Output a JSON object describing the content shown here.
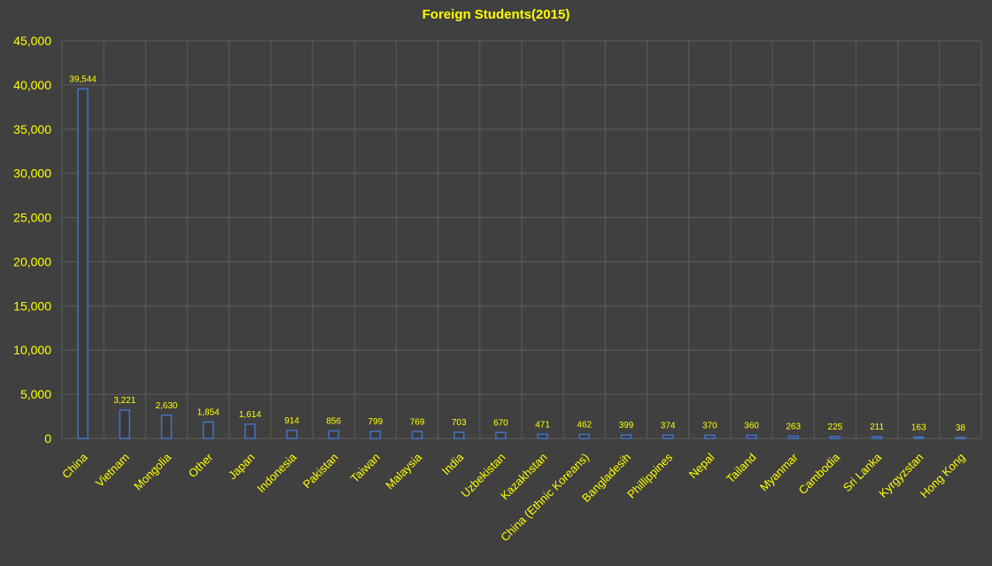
{
  "chart_data": {
    "type": "bar",
    "title": "Foreign Students(2015)",
    "xlabel": "",
    "ylabel": "",
    "ylim": [
      0,
      45000
    ],
    "y_ticks": [
      "0",
      "5,000",
      "10,000",
      "15,000",
      "20,000",
      "25,000",
      "30,000",
      "35,000",
      "40,000",
      "45,000"
    ],
    "grid": true,
    "legend": "none",
    "categories": [
      "China",
      "Vietnam",
      "Mongolia",
      "Other",
      "Japan",
      "Indonesia",
      "Pakistan",
      "Taiwan",
      "Malaysia",
      "India",
      "Uzbekistan",
      "Kazakhstan",
      "China (Ethnic Koreans)",
      "Bangladesih",
      "Phillippines",
      "Nepal",
      "Tailand",
      "Myanmar",
      "Cambodia",
      "Sri Lanka",
      "Kyrgyzstan",
      "Hong Kong"
    ],
    "values": [
      39544,
      3221,
      2630,
      1854,
      1614,
      914,
      856,
      799,
      769,
      703,
      670,
      471,
      462,
      399,
      374,
      370,
      360,
      263,
      225,
      211,
      163,
      38
    ],
    "data_labels": [
      "39,544",
      "3,221",
      "2,630",
      "1,854",
      "1,614",
      "914",
      "856",
      "799",
      "769",
      "703",
      "670",
      "471",
      "462",
      "399",
      "374",
      "370",
      "360",
      "263",
      "225",
      "211",
      "163",
      "38"
    ],
    "colors": {
      "background": "#404040",
      "text": "#ffff00",
      "bar_outline": "#4472c4",
      "gridline": "#5c5c5c"
    }
  }
}
